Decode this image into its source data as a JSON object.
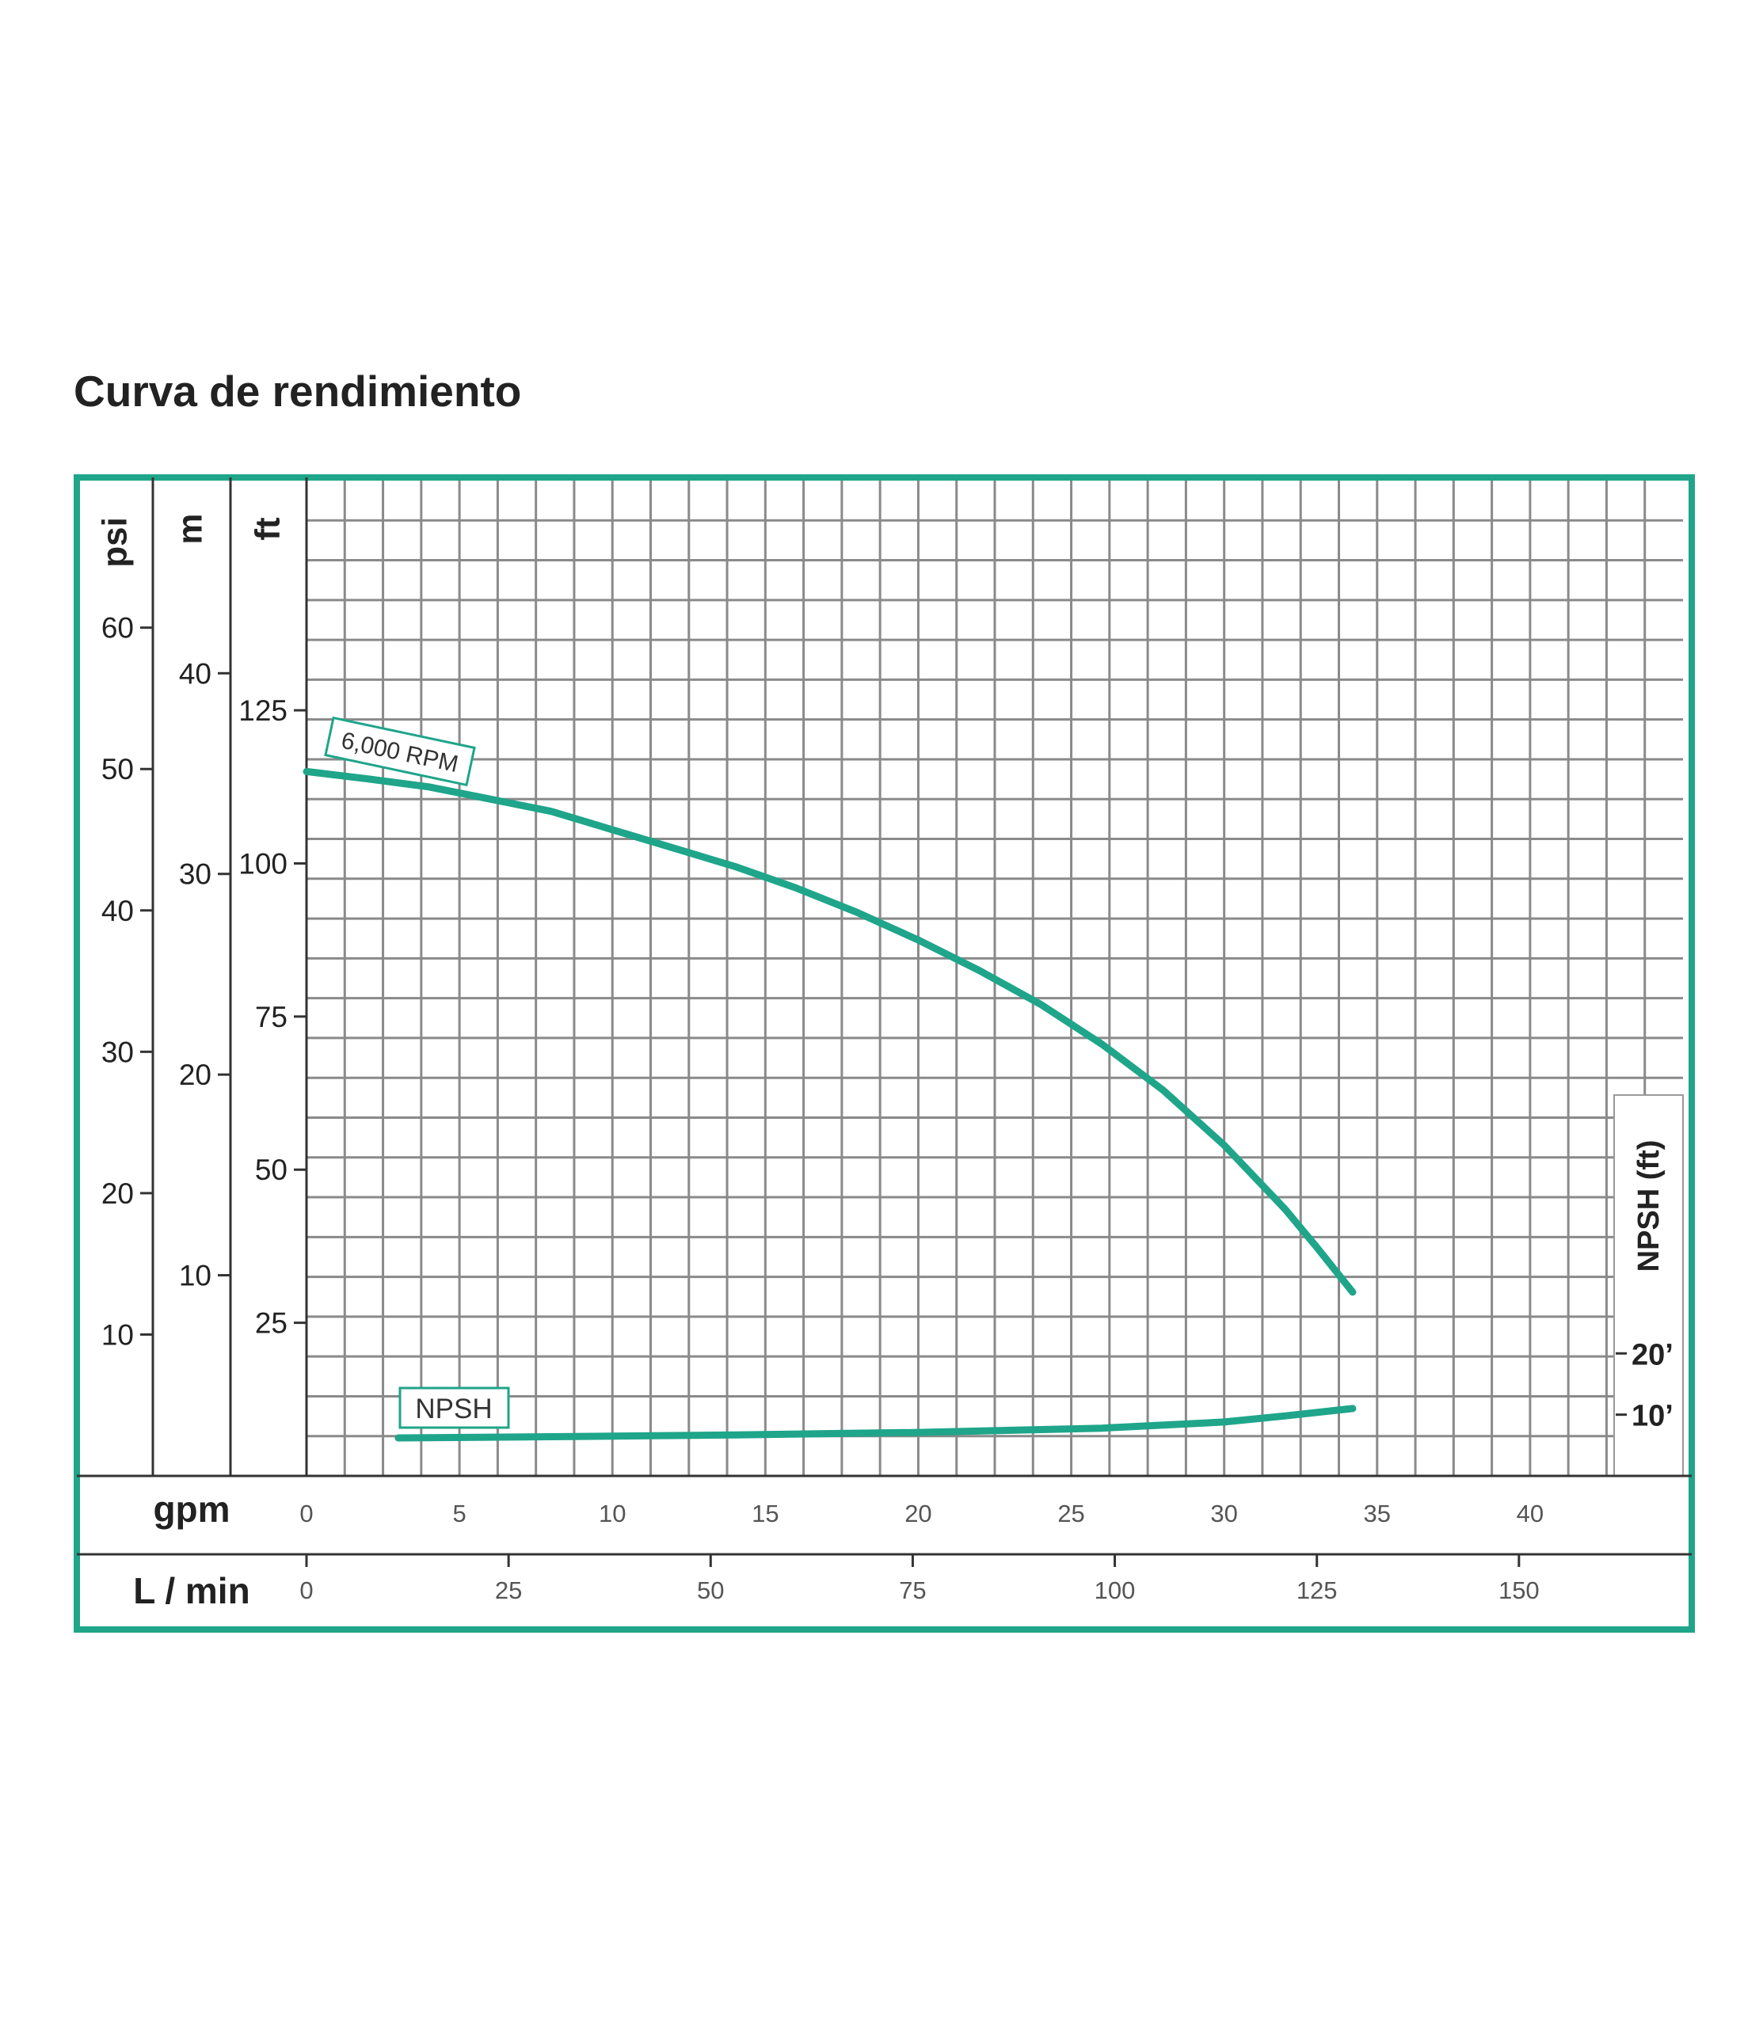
{
  "title": "Curva de rendimiento",
  "colors": {
    "accent": "#1fa58a",
    "grid": "#8a8a8a",
    "text": "#222222",
    "frame": "#333333"
  },
  "chart_data": {
    "type": "line",
    "grid": true,
    "x_axes": [
      {
        "label": "gpm",
        "range": [
          0,
          45
        ],
        "ticks": [
          0,
          5,
          10,
          15,
          20,
          25,
          30,
          35,
          40
        ]
      },
      {
        "label": "L / min",
        "range": [
          0,
          170.3
        ],
        "ticks": [
          0,
          25,
          50,
          75,
          100,
          125,
          150
        ]
      }
    ],
    "y_axes": [
      {
        "label": "psi",
        "range": [
          0,
          70.4
        ],
        "ticks": [
          10,
          20,
          30,
          40,
          50,
          60
        ]
      },
      {
        "label": "m",
        "range": [
          0,
          49.6
        ],
        "ticks": [
          10,
          20,
          30,
          40
        ]
      },
      {
        "label": "ft",
        "range": [
          0,
          162.5
        ],
        "ticks": [
          25,
          50,
          75,
          100,
          125
        ]
      },
      {
        "label": "NPSH (ft)",
        "range": [
          0,
          162.5
        ],
        "ticks": [
          10,
          20
        ],
        "tick_labels": [
          "10’",
          "20’"
        ]
      }
    ],
    "series": [
      {
        "name": "6,000 RPM",
        "x": [
          0,
          2,
          4,
          6,
          8,
          10,
          12,
          14,
          16,
          18,
          20,
          22,
          24,
          26,
          28,
          30,
          32,
          33,
          34.2
        ],
        "y": [
          115,
          113.8,
          112.5,
          110.5,
          108.5,
          105.5,
          102.5,
          99.5,
          96,
          92,
          87.5,
          82.5,
          77,
          70.5,
          63,
          54,
          43.5,
          37.5,
          30
        ]
      },
      {
        "name": "NPSH",
        "x": [
          3,
          8,
          14,
          20,
          26,
          30,
          32,
          34.2
        ],
        "y": [
          6.2,
          6.4,
          6.7,
          7.1,
          7.8,
          8.8,
          9.8,
          11
        ]
      }
    ]
  }
}
